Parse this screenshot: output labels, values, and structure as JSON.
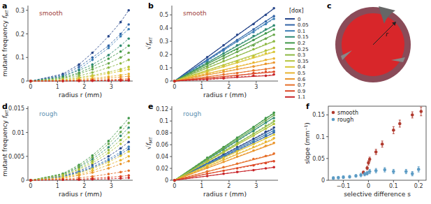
{
  "chart_data": [
    {
      "type": "line",
      "panel": "a",
      "annotation": "smooth",
      "x_label": "radius r (mm)",
      "y_label": "mutant frequency ",
      "y_label_symbol": "f",
      "y_label_sub": "MT",
      "xlim": [
        -0.1,
        3.8
      ],
      "ylim": [
        0,
        0.32
      ],
      "xticks": [
        0,
        1,
        2,
        3
      ],
      "yticks": [
        0,
        0.1,
        0.2,
        0.3
      ],
      "line_style": "dashed",
      "marker": "circle",
      "x": [
        0,
        1.2,
        1.8,
        2.3,
        2.9,
        3.35,
        3.65
      ],
      "series": [
        {
          "name": "0",
          "color": "#27468a",
          "values": [
            0,
            0.03,
            0.07,
            0.12,
            0.19,
            0.25,
            0.3
          ]
        },
        {
          "name": "0.05",
          "color": "#3264a6",
          "values": [
            0,
            0.025,
            0.06,
            0.1,
            0.15,
            0.2,
            0.24
          ]
        },
        {
          "name": "0.1",
          "color": "#3a7db5",
          "values": [
            0,
            0.02,
            0.05,
            0.09,
            0.14,
            0.19,
            0.22
          ]
        },
        {
          "name": "0.15",
          "color": "#2f8a72",
          "values": [
            0,
            0.02,
            0.045,
            0.07,
            0.11,
            0.15,
            0.18
          ]
        },
        {
          "name": "0.2",
          "color": "#3f9748",
          "values": [
            0,
            0.015,
            0.035,
            0.06,
            0.095,
            0.125,
            0.15
          ]
        },
        {
          "name": "0.25",
          "color": "#66a64a",
          "values": [
            0,
            0.012,
            0.03,
            0.05,
            0.075,
            0.1,
            0.12
          ]
        },
        {
          "name": "0.3",
          "color": "#8db844",
          "values": [
            0,
            0.01,
            0.022,
            0.036,
            0.057,
            0.075,
            0.09
          ]
        },
        {
          "name": "0.35",
          "color": "#b4c43a",
          "values": [
            0,
            0.006,
            0.015,
            0.024,
            0.038,
            0.05,
            0.06
          ]
        },
        {
          "name": "0.4",
          "color": "#d8c533",
          "values": [
            0,
            0.005,
            0.012,
            0.02,
            0.032,
            0.042,
            0.05
          ]
        },
        {
          "name": "0.5",
          "color": "#e8b42f",
          "values": [
            0,
            0.003,
            0.007,
            0.012,
            0.019,
            0.025,
            0.03
          ]
        },
        {
          "name": "0.6",
          "color": "#ea962d",
          "values": [
            0,
            0.002,
            0.005,
            0.008,
            0.013,
            0.017,
            0.02
          ]
        },
        {
          "name": "0.7",
          "color": "#e6702a",
          "values": [
            0,
            0.001,
            0.002,
            0.004,
            0.006,
            0.008,
            0.01
          ]
        },
        {
          "name": "0.9",
          "color": "#dc4826",
          "values": [
            0,
            0.0005,
            0.001,
            0.002,
            0.003,
            0.004,
            0.005
          ]
        },
        {
          "name": "1.1",
          "color": "#c72429",
          "values": [
            0,
            0,
            0.0005,
            0.001,
            0.0013,
            0.0017,
            0.002
          ]
        }
      ]
    },
    {
      "type": "line",
      "panel": "b",
      "annotation": "smooth",
      "x_label": "radius r (mm)",
      "y_label": "",
      "y_label_symbol": "√f",
      "y_label_sub": "MT",
      "xlim": [
        -0.1,
        3.8
      ],
      "ylim": [
        0,
        0.57
      ],
      "xticks": [
        0,
        1,
        2,
        3
      ],
      "yticks": [
        0,
        0.1,
        0.2,
        0.3,
        0.4,
        0.5
      ],
      "line_style": "dashed",
      "marker": "circle",
      "legend": "right",
      "legend_title": "[dox]",
      "x": [
        0,
        1.2,
        1.8,
        2.3,
        2.9,
        3.35,
        3.65
      ],
      "fit_slopes": [
        0.15,
        0.135,
        0.13,
        0.115,
        0.107,
        0.096,
        0.082,
        0.068,
        0.06,
        0.047,
        0.038,
        0.027,
        0.019,
        0.012
      ],
      "series": [
        {
          "name": "0",
          "color": "#27468a",
          "values": [
            0,
            0.18,
            0.27,
            0.35,
            0.43,
            0.5,
            0.55
          ]
        },
        {
          "name": "0.05",
          "color": "#3264a6",
          "values": [
            0,
            0.16,
            0.24,
            0.31,
            0.39,
            0.45,
            0.49
          ]
        },
        {
          "name": "0.1",
          "color": "#3a7db5",
          "values": [
            0,
            0.15,
            0.23,
            0.3,
            0.37,
            0.43,
            0.47
          ]
        },
        {
          "name": "0.15",
          "color": "#2f8a72",
          "values": [
            0,
            0.14,
            0.21,
            0.27,
            0.34,
            0.39,
            0.42
          ]
        },
        {
          "name": "0.2",
          "color": "#3f9748",
          "values": [
            0,
            0.13,
            0.19,
            0.24,
            0.31,
            0.36,
            0.39
          ]
        },
        {
          "name": "0.25",
          "color": "#66a64a",
          "values": [
            0,
            0.11,
            0.17,
            0.22,
            0.27,
            0.32,
            0.35
          ]
        },
        {
          "name": "0.3",
          "color": "#8db844",
          "values": [
            0,
            0.1,
            0.15,
            0.19,
            0.24,
            0.28,
            0.3
          ]
        },
        {
          "name": "0.35",
          "color": "#b4c43a",
          "values": [
            0,
            0.08,
            0.12,
            0.15,
            0.19,
            0.23,
            0.25
          ]
        },
        {
          "name": "0.4",
          "color": "#d8c533",
          "values": [
            0,
            0.07,
            0.11,
            0.14,
            0.18,
            0.21,
            0.22
          ]
        },
        {
          "name": "0.5",
          "color": "#e8b42f",
          "values": [
            0,
            0.06,
            0.08,
            0.11,
            0.14,
            0.16,
            0.17
          ]
        },
        {
          "name": "0.6",
          "color": "#ea962d",
          "values": [
            0,
            0.05,
            0.07,
            0.09,
            0.11,
            0.13,
            0.14
          ]
        },
        {
          "name": "0.7",
          "color": "#e6702a",
          "values": [
            0,
            0.03,
            0.05,
            0.06,
            0.08,
            0.09,
            0.1
          ]
        },
        {
          "name": "0.9",
          "color": "#dc4826",
          "values": [
            0,
            0.02,
            0.03,
            0.04,
            0.06,
            0.07,
            0.07
          ]
        },
        {
          "name": "1.1",
          "color": "#c72429",
          "values": [
            0,
            0.01,
            0.02,
            0.03,
            0.04,
            0.04,
            0.05
          ]
        }
      ]
    },
    {
      "type": "line",
      "panel": "d",
      "annotation": "rough",
      "x_label": "radius r (mm)",
      "y_label": "mutant frequency ",
      "y_label_symbol": "f",
      "y_label_sub": "MT",
      "xlim": [
        -0.1,
        3.8
      ],
      "ylim": [
        0,
        0.0155
      ],
      "xticks": [
        0,
        1,
        2,
        3
      ],
      "yticks": [
        0,
        0.005,
        0.01,
        0.015
      ],
      "line_style": "dashed",
      "marker": "circle",
      "x": [
        0,
        1.2,
        1.8,
        2.3,
        2.9,
        3.35,
        3.65
      ],
      "series": [
        {
          "name": "0",
          "color": "#27468a",
          "values": [
            0,
            0.0009,
            0.0019,
            0.0032,
            0.005,
            0.0067,
            0.008
          ]
        },
        {
          "name": "0.05",
          "color": "#3264a6",
          "values": [
            0,
            0.0007,
            0.0016,
            0.0026,
            0.0041,
            0.0055,
            0.0065
          ]
        },
        {
          "name": "0.1",
          "color": "#3a7db5",
          "values": [
            0,
            0.0008,
            0.0017,
            0.0028,
            0.0044,
            0.0059,
            0.007
          ]
        },
        {
          "name": "0.15",
          "color": "#2f8a72",
          "values": [
            0,
            0.0012,
            0.0027,
            0.0044,
            0.0069,
            0.0093,
            0.011
          ]
        },
        {
          "name": "0.2",
          "color": "#3f9748",
          "values": [
            0,
            0.0014,
            0.0032,
            0.0052,
            0.0082,
            0.011,
            0.013
          ]
        },
        {
          "name": "0.25",
          "color": "#66a64a",
          "values": [
            0,
            0.0013,
            0.0029,
            0.0048,
            0.0076,
            0.0101,
            0.012
          ]
        },
        {
          "name": "0.3",
          "color": "#8db844",
          "values": [
            0,
            0.0011,
            0.0024,
            0.004,
            0.0063,
            0.0084,
            0.01
          ]
        },
        {
          "name": "0.35",
          "color": "#b4c43a",
          "values": [
            0,
            0.001,
            0.0022,
            0.0036,
            0.0057,
            0.0076,
            0.009
          ]
        },
        {
          "name": "0.4",
          "color": "#d8c533",
          "values": [
            0,
            0.0006,
            0.0015,
            0.0024,
            0.0038,
            0.0051,
            0.006
          ]
        },
        {
          "name": "0.5",
          "color": "#e8b42f",
          "values": [
            0,
            0.0005,
            0.0012,
            0.002,
            0.0032,
            0.0042,
            0.005
          ]
        },
        {
          "name": "0.6",
          "color": "#ea962d",
          "values": [
            0,
            0.0004,
            0.001,
            0.0016,
            0.0025,
            0.0034,
            0.004
          ]
        },
        {
          "name": "0.7",
          "color": "#e6702a",
          "values": [
            0,
            0.0002,
            0.0005,
            0.0008,
            0.0013,
            0.0017,
            0.002
          ]
        },
        {
          "name": "0.9",
          "color": "#dc4826",
          "values": [
            0,
            0.0001,
            0.0002,
            0.0004,
            0.0006,
            0.0008,
            0.001
          ]
        },
        {
          "name": "1.1",
          "color": "#c72429",
          "values": [
            0,
            0.0001,
            0.0001,
            0.0002,
            0.0003,
            0.0004,
            0.0005
          ]
        }
      ]
    },
    {
      "type": "line",
      "panel": "e",
      "annotation": "rough",
      "x_label": "radius r (mm)",
      "y_label": "",
      "y_label_symbol": "√f",
      "y_label_sub": "MT",
      "xlim": [
        -0.1,
        3.8
      ],
      "ylim": [
        0,
        0.125
      ],
      "xticks": [
        0,
        1,
        2,
        3
      ],
      "yticks": [
        0,
        0.02,
        0.04,
        0.06,
        0.08,
        0.1,
        0.12
      ],
      "line_style": "dashed",
      "marker": "circle",
      "x": [
        0,
        1.2,
        1.8,
        2.3,
        2.9,
        3.35,
        3.65
      ],
      "fit_slopes": [
        0.024,
        0.022,
        0.023,
        0.029,
        0.031,
        0.03,
        0.027,
        0.026,
        0.021,
        0.019,
        0.017,
        0.012,
        0.009,
        0.006
      ],
      "series": [
        {
          "name": "0",
          "color": "#27468a",
          "values": [
            0,
            0.029,
            0.044,
            0.056,
            0.07,
            0.082,
            0.089
          ]
        },
        {
          "name": "0.05",
          "color": "#3264a6",
          "values": [
            0,
            0.027,
            0.04,
            0.051,
            0.064,
            0.074,
            0.081
          ]
        },
        {
          "name": "0.1",
          "color": "#3a7db5",
          "values": [
            0,
            0.028,
            0.041,
            0.053,
            0.066,
            0.077,
            0.084
          ]
        },
        {
          "name": "0.15",
          "color": "#2f8a72",
          "values": [
            0,
            0.035,
            0.051,
            0.066,
            0.083,
            0.097,
            0.105
          ]
        },
        {
          "name": "0.2",
          "color": "#3f9748",
          "values": [
            0,
            0.038,
            0.056,
            0.072,
            0.09,
            0.105,
            0.114
          ]
        },
        {
          "name": "0.25",
          "color": "#66a64a",
          "values": [
            0,
            0.036,
            0.054,
            0.069,
            0.087,
            0.101,
            0.11
          ]
        },
        {
          "name": "0.3",
          "color": "#8db844",
          "values": [
            0,
            0.033,
            0.049,
            0.063,
            0.079,
            0.092,
            0.1
          ]
        },
        {
          "name": "0.35",
          "color": "#b4c43a",
          "values": [
            0,
            0.031,
            0.047,
            0.06,
            0.075,
            0.087,
            0.095
          ]
        },
        {
          "name": "0.4",
          "color": "#d8c533",
          "values": [
            0,
            0.025,
            0.038,
            0.049,
            0.061,
            0.071,
            0.077
          ]
        },
        {
          "name": "0.5",
          "color": "#e8b42f",
          "values": [
            0,
            0.023,
            0.035,
            0.045,
            0.056,
            0.065,
            0.071
          ]
        },
        {
          "name": "0.6",
          "color": "#ea962d",
          "values": [
            0,
            0.021,
            0.031,
            0.04,
            0.05,
            0.058,
            0.063
          ]
        },
        {
          "name": "0.7",
          "color": "#e6702a",
          "values": [
            0,
            0.015,
            0.022,
            0.028,
            0.036,
            0.041,
            0.045
          ]
        },
        {
          "name": "0.9",
          "color": "#dc4826",
          "values": [
            0,
            0.011,
            0.016,
            0.02,
            0.025,
            0.029,
            0.032
          ]
        },
        {
          "name": "1.1",
          "color": "#c72429",
          "values": [
            0,
            0.007,
            0.011,
            0.014,
            0.017,
            0.02,
            0.022
          ]
        }
      ]
    },
    {
      "type": "scatter",
      "panel": "f",
      "x_label": "selective difference s",
      "y_label": "slope (mm⁻¹)",
      "xlim": [
        -0.16,
        0.23
      ],
      "ylim": [
        0,
        0.17
      ],
      "xticks": [
        {
          "value": -0.1,
          "label": "−0.1"
        },
        0,
        0.1,
        0.2
      ],
      "yticks": [
        0,
        0.05,
        0.1,
        0.15
      ],
      "legend": "upper left",
      "marker": "circle",
      "series": [
        {
          "name": "smooth",
          "color": "#b03a2e",
          "x": [
            -0.02,
            -0.005,
            0,
            0.005,
            0.03,
            0.055,
            0.1,
            0.125,
            0.175,
            0.21
          ],
          "values": [
            0.018,
            0.028,
            0.04,
            0.048,
            0.065,
            0.083,
            0.115,
            0.13,
            0.15,
            0.158
          ],
          "errors": [
            0.003,
            0.004,
            0.005,
            0.005,
            0.006,
            0.007,
            0.008,
            0.008,
            0.007,
            0.01
          ]
        },
        {
          "name": "rough",
          "color": "#5b9bc4",
          "x": [
            -0.14,
            -0.12,
            -0.1,
            -0.075,
            -0.05,
            -0.03,
            -0.015,
            -0.005,
            0.005,
            0.03,
            0.065,
            0.1,
            0.15,
            0.175,
            0.2
          ],
          "values": [
            0.005,
            0.006,
            0.007,
            0.008,
            0.01,
            0.012,
            0.014,
            0.016,
            0.02,
            0.022,
            0.024,
            0.02,
            0.02,
            0.015,
            0.025
          ],
          "errors": [
            0.003,
            0.003,
            0.003,
            0.003,
            0.003,
            0.004,
            0.004,
            0.004,
            0.005,
            0.005,
            0.005,
            0.005,
            0.005,
            0.005,
            0.006
          ]
        }
      ]
    }
  ],
  "diagram": {
    "panel": "c",
    "label": "r"
  }
}
